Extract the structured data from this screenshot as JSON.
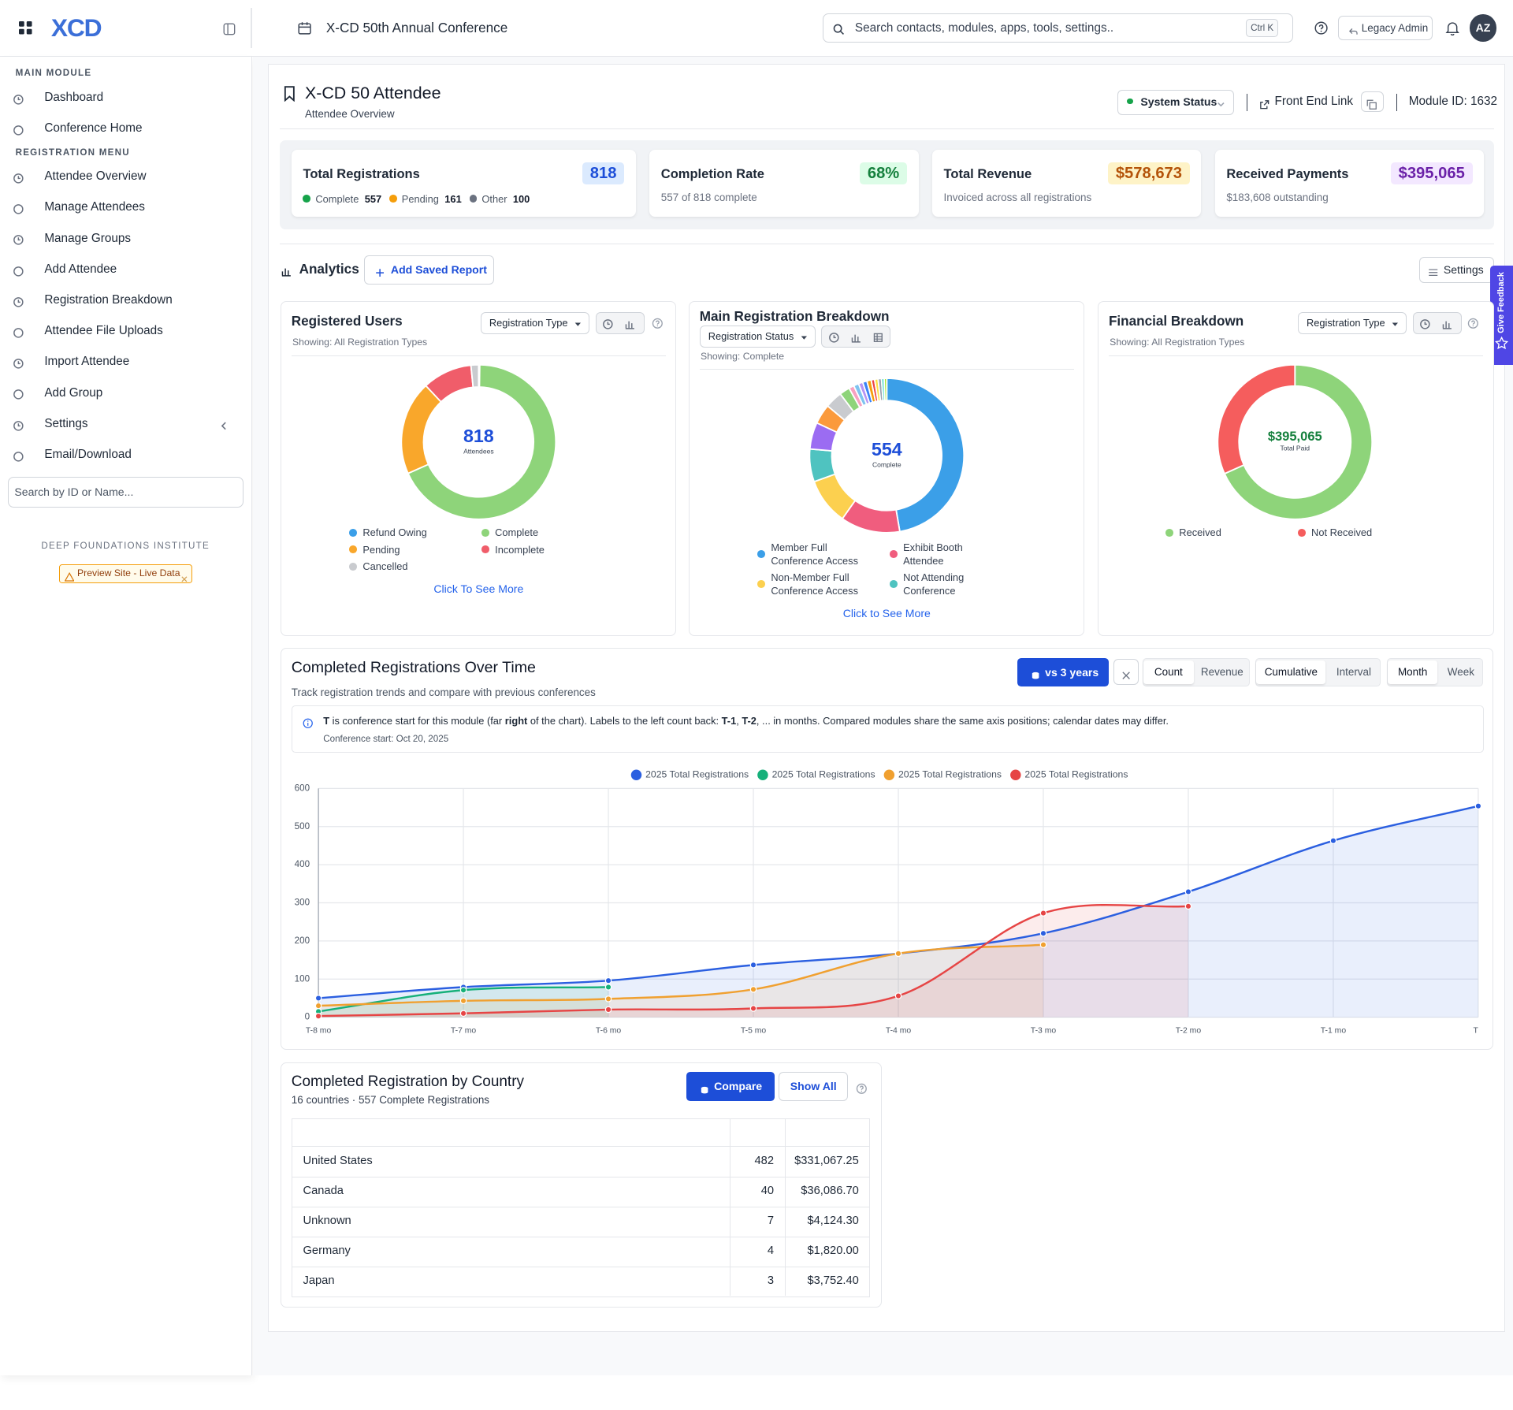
{
  "header": {
    "logo": "XCD",
    "conference": "X-CD 50th Annual Conference",
    "search_placeholder": "Search contacts, modules, apps, tools, settings..",
    "search_shortcut": "Ctrl K",
    "legacy_admin": "Legacy Admin",
    "avatar": "AZ"
  },
  "sidebar": {
    "sections": [
      {
        "title": "MAIN MODULE",
        "items": [
          "Dashboard",
          "Conference Home"
        ]
      },
      {
        "title": "REGISTRATION MENU",
        "items": [
          "Attendee Overview",
          "Manage Attendees",
          "Manage Groups",
          "Add Attendee",
          "Registration Breakdown",
          "Attendee File Uploads",
          "Import Attendee",
          "Add Group",
          "Settings",
          "Email/Download"
        ]
      }
    ],
    "search_placeholder": "Search by ID or Name...",
    "organization": "DEEP FOUNDATIONS INSTITUTE",
    "badge": "Preview Site - Live Data"
  },
  "page": {
    "title": "X-CD 50 Attendee",
    "subtitle": "Attendee Overview",
    "system_status": "System Status",
    "front_end_link": "Front End Link",
    "module_id": "Module ID: 1632"
  },
  "kpis": [
    {
      "label": "Total Registrations",
      "value": 818,
      "breakdown": [
        {
          "name": "Complete",
          "value": 557,
          "color": "#16a34a"
        },
        {
          "name": "Pending",
          "value": 161,
          "color": "#f59e0b"
        },
        {
          "name": "Other",
          "value": 100,
          "color": "#6b7280"
        }
      ]
    },
    {
      "label": "Completion Rate",
      "value": "68%",
      "note": "557 of 818 complete"
    },
    {
      "label": "Total Revenue",
      "value": "$578,673",
      "note": "Invoiced across all registrations"
    },
    {
      "label": "Received Payments",
      "value": "$395,065",
      "note": "$183,608 outstanding"
    }
  ],
  "analytics": {
    "title": "Analytics",
    "add_report": "Add Saved Report",
    "settings": "Settings",
    "feedback": "Give Feedback"
  },
  "chart_data": [
    {
      "type": "donut",
      "title": "Registered Users",
      "filter": "Registration Type",
      "showing": "Showing: All Registration Types",
      "center_value": 818,
      "center_label": "Attendees",
      "categories": [
        "Refund Owing",
        "Complete",
        "Pending",
        "Incomplete",
        "Cancelled"
      ],
      "values": [
        2,
        557,
        161,
        85,
        13
      ],
      "colors": [
        "#3b9fe8",
        "#8ed47a",
        "#f9a72b",
        "#f05d6a",
        "#c9cbcf"
      ],
      "link": "Click To See More"
    },
    {
      "type": "donut",
      "title": "Main Registration Breakdown",
      "filter": "Registration Status",
      "showing": "Showing: Complete",
      "center_value": 554,
      "center_label": "Complete",
      "categories": [
        "Member Full Conference Access",
        "Exhibit Booth Attendee",
        "Non-Member Full Conference Access",
        "Not Attending Conference",
        null,
        null,
        null,
        null,
        null,
        null,
        null,
        null,
        null,
        null,
        null,
        null,
        null,
        null
      ],
      "values": [
        262,
        69,
        54,
        38,
        31,
        23,
        20,
        12,
        6,
        6,
        5,
        5,
        5,
        4,
        4,
        4,
        3,
        3
      ],
      "colors": [
        "#3b9fe8",
        "#f05d7e",
        "#fcd04f",
        "#4fc3c0",
        "#9b6cf2",
        "#fb9a3c",
        "#c9cbcf",
        "#8ed47a",
        "#f7a1c0",
        "#7ec3f0",
        "#b794f4",
        "#3b82f6",
        "#f59e0b",
        "#ef4444",
        "#fde047",
        "#9ca3af",
        "#2dd4bf",
        "#a3e635"
      ],
      "link": "Click to See More"
    },
    {
      "type": "donut",
      "title": "Financial Breakdown",
      "filter": "Registration Type",
      "showing": "Showing: All Registration Types",
      "center_value": "$395,065",
      "center_label": "Total Paid",
      "categories": [
        "Received",
        "Not Received"
      ],
      "values": [
        395065,
        183608
      ],
      "colors": [
        "#8ed47a",
        "#f55d5d"
      ]
    },
    {
      "type": "line",
      "title": "Completed Registrations Over Time",
      "subtitle": "Track registration trends and compare with previous conferences",
      "controls": {
        "compare": "vs 3 years",
        "metrics": [
          "Count",
          "Revenue"
        ],
        "modes": [
          "Cumulative",
          "Interval"
        ],
        "intervals": [
          "Month",
          "Week"
        ]
      },
      "info": [
        "T",
        " is conference start for this module (far ",
        "right",
        " of the chart). Labels to the left count back: ",
        "T-1",
        ", ",
        "T-2",
        ", ... in months. Compared modules share the same axis positions; calendar dates may differ."
      ],
      "info_note": "Conference start: Oct 20, 2025",
      "categories": [
        "T-8 mo",
        "T-7 mo",
        "T-6 mo",
        "T-5 mo",
        "T-4 mo",
        "T-3 mo",
        "T-2 mo",
        "T-1 mo",
        "T"
      ],
      "series": [
        {
          "name": "2025 Total Registrations",
          "color": "#2b5fe0",
          "values": [
            50,
            79,
            96,
            137,
            167,
            220,
            329,
            463,
            554
          ]
        },
        {
          "name": "2025 Total Registrations",
          "color": "#16b07a",
          "values": [
            15,
            71,
            79,
            null,
            null,
            null,
            null,
            null,
            null
          ]
        },
        {
          "name": "2025 Total Registrations",
          "color": "#f0a030",
          "values": [
            30,
            43,
            48,
            73,
            167,
            190,
            null,
            null,
            null
          ]
        },
        {
          "name": "2025 Total Registrations",
          "color": "#e64545",
          "values": [
            3,
            10,
            20,
            23,
            56,
            273,
            291,
            null,
            null
          ]
        }
      ],
      "ylim": [
        0,
        600
      ],
      "yticks": [
        0,
        100,
        200,
        300,
        400,
        500,
        600
      ],
      "grid": true
    }
  ],
  "country_table": {
    "title": "Completed Registration by Country",
    "subtitle": "16 countries · 557 Complete Registrations",
    "compare": "Compare",
    "show_all": "Show All",
    "rows": [
      [
        "United States",
        482,
        "$331,067.25"
      ],
      [
        "Canada",
        40,
        "$36,086.70"
      ],
      [
        "Unknown",
        7,
        "$4,124.30"
      ],
      [
        "Germany",
        4,
        "$1,820.00"
      ],
      [
        "Japan",
        3,
        "$3,752.40"
      ]
    ]
  }
}
